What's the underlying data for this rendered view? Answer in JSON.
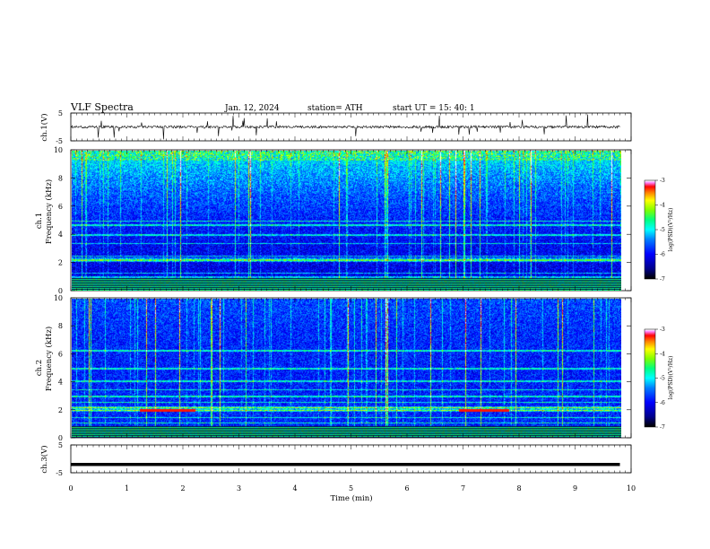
{
  "header": {
    "title": "VLF  Spectra",
    "date": "Jan. 12, 2024",
    "station": "station= ATH",
    "start": "start  UT  =   15: 40: 1"
  },
  "colors": {
    "axis": "#000000",
    "waveform": "#000000",
    "spectrogram_colormap": [
      "#000000",
      "#00008b",
      "#0000ff",
      "#0080ff",
      "#00ffff",
      "#00ff80",
      "#80ff00",
      "#ffff00",
      "#ff8000",
      "#ff0000",
      "#ff80ff",
      "#ffffff"
    ]
  },
  "chart_data": [
    {
      "type": "line",
      "name": "ch.1 waveform",
      "ylabel": "ch.1(V)",
      "ylim": [
        -5,
        5
      ],
      "yticks": [
        "5",
        "-5"
      ],
      "xlim": [
        0,
        10
      ],
      "baseline_value": 0,
      "note_visible": "continuous noisy trace near 0 V with frequent impulsive spikes",
      "grid": false
    },
    {
      "type": "heatmap",
      "name": "ch.1 spectrogram",
      "ylabel_line1": "ch.1",
      "ylabel_line2": "Frequency  (kHz)",
      "ylim": [
        0,
        10
      ],
      "yticks": [
        "0",
        "2",
        "4",
        "6",
        "8",
        "10"
      ],
      "xlim": [
        0,
        9.8
      ],
      "colorbar": {
        "label": "log(PSD)(V²/Hz)",
        "range": [
          -7,
          -3
        ],
        "ticks": [
          "-3",
          "-4",
          "-5",
          "-6",
          "-7"
        ]
      },
      "features": {
        "hum_lines_khz": [
          0.2,
          0.4,
          0.6,
          0.8,
          1.0,
          1.3,
          2.2,
          2.5,
          3.4,
          4.0,
          4.7,
          5.0
        ],
        "strong_band_khz": [
          2.1,
          2.4
        ]
      },
      "grid": false
    },
    {
      "type": "heatmap",
      "name": "ch.2 spectrogram",
      "ylabel_line1": "ch.2",
      "ylabel_line2": "Frequency  (kHz)",
      "ylim": [
        0,
        10
      ],
      "yticks": [
        "0",
        "2",
        "4",
        "6",
        "8",
        "10"
      ],
      "xlim": [
        0,
        9.8
      ],
      "colorbar": {
        "label": "log(PSD)(V²/Hz)",
        "range": [
          -7,
          -3
        ],
        "ticks": [
          "-3",
          "-4",
          "-5",
          "-6",
          "-7"
        ]
      },
      "features": {
        "hum_lines_khz": [
          0.2,
          0.4,
          0.6,
          0.8,
          1.1,
          1.5,
          2.0,
          2.2,
          2.6,
          3.0,
          3.5,
          4.1,
          5.0,
          6.3
        ],
        "strong_band_khz": [
          1.9,
          2.3
        ],
        "intense_segments": [
          [
            1.2,
            2.2
          ],
          [
            6.9,
            7.8
          ]
        ]
      },
      "grid": false
    },
    {
      "type": "line",
      "name": "ch.3 waveform",
      "ylabel": "ch.3(V)",
      "ylim": [
        -5,
        5
      ],
      "yticks": [
        "5",
        "-5"
      ],
      "xlim": [
        0,
        10
      ],
      "baseline_value": -2.0,
      "grid": false
    }
  ],
  "xaxis": {
    "label": "Time  (min)",
    "ticks": [
      "0",
      "1",
      "2",
      "3",
      "4",
      "5",
      "6",
      "7",
      "8",
      "9",
      "10"
    ],
    "range": [
      0,
      10
    ]
  }
}
